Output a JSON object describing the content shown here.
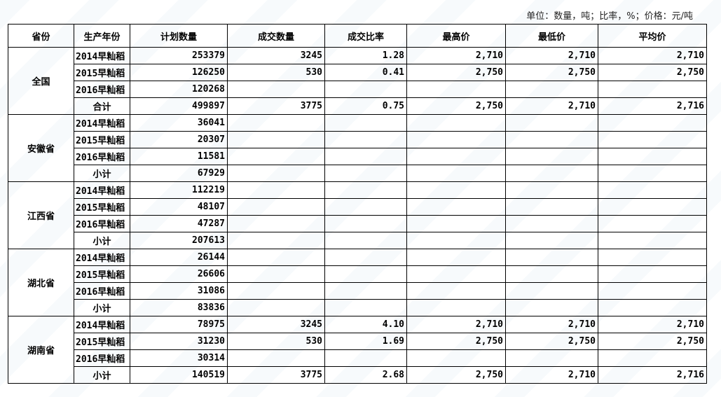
{
  "unit_note": "单位：数量，吨；比率，%；价格：元/吨",
  "headers": [
    "省份",
    "生产年份",
    "计划数量",
    "成交数量",
    "成交比率",
    "最高价",
    "最低价",
    "平均价"
  ],
  "groups": [
    {
      "province": "全国",
      "rows": [
        [
          "2014早籼稻",
          "253379",
          "3245",
          "1.28",
          "2,710",
          "2,710",
          "2,710"
        ],
        [
          "2015早籼稻",
          "126250",
          "530",
          "0.41",
          "2,750",
          "2,750",
          "2,750"
        ],
        [
          "2016早籼稻",
          "120268",
          "",
          "",
          "",
          "",
          ""
        ],
        [
          "合计",
          "499897",
          "3775",
          "0.75",
          "2,750",
          "2,710",
          "2,716"
        ]
      ]
    },
    {
      "province": "安徽省",
      "rows": [
        [
          "2014早籼稻",
          "36041",
          "",
          "",
          "",
          "",
          ""
        ],
        [
          "2015早籼稻",
          "20307",
          "",
          "",
          "",
          "",
          ""
        ],
        [
          "2016早籼稻",
          "11581",
          "",
          "",
          "",
          "",
          ""
        ],
        [
          "小计",
          "67929",
          "",
          "",
          "",
          "",
          ""
        ]
      ]
    },
    {
      "province": "江西省",
      "rows": [
        [
          "2014早籼稻",
          "112219",
          "",
          "",
          "",
          "",
          ""
        ],
        [
          "2015早籼稻",
          "48107",
          "",
          "",
          "",
          "",
          ""
        ],
        [
          "2016早籼稻",
          "47287",
          "",
          "",
          "",
          "",
          ""
        ],
        [
          "小计",
          "207613",
          "",
          "",
          "",
          "",
          ""
        ]
      ]
    },
    {
      "province": "湖北省",
      "rows": [
        [
          "2014早籼稻",
          "26144",
          "",
          "",
          "",
          "",
          ""
        ],
        [
          "2015早籼稻",
          "26606",
          "",
          "",
          "",
          "",
          ""
        ],
        [
          "2016早籼稻",
          "31086",
          "",
          "",
          "",
          "",
          ""
        ],
        [
          "小计",
          "83836",
          "",
          "",
          "",
          "",
          ""
        ]
      ]
    },
    {
      "province": "湖南省",
      "rows": [
        [
          "2014早籼稻",
          "78975",
          "3245",
          "4.10",
          "2,710",
          "2,710",
          "2,710"
        ],
        [
          "2015早籼稻",
          "31230",
          "530",
          "1.69",
          "2,750",
          "2,750",
          "2,750"
        ],
        [
          "2016早籼稻",
          "30314",
          "",
          "",
          "",
          "",
          ""
        ],
        [
          "小计",
          "140519",
          "3775",
          "2.68",
          "2,750",
          "2,710",
          "2,716"
        ]
      ]
    }
  ]
}
